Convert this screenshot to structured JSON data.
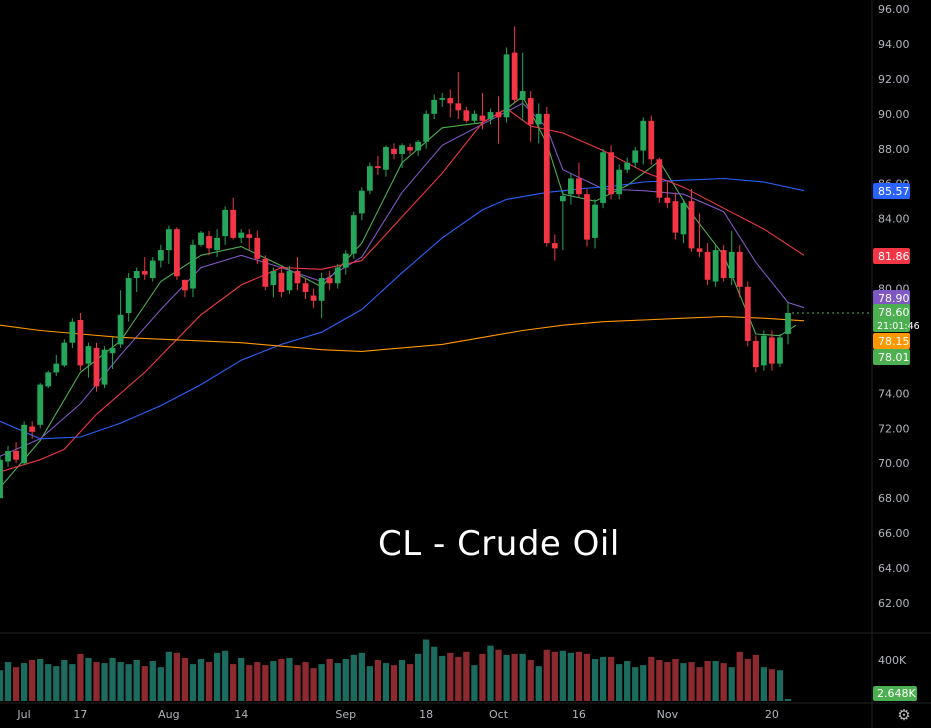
{
  "chart_data": {
    "type": "candlestick",
    "title": "CL - Crude Oil",
    "y_ticks": [
      "96.00",
      "94.00",
      "92.00",
      "90.00",
      "88.00",
      "86.00",
      "84.00",
      "82.00",
      "80.00",
      "78.00",
      "76.00",
      "74.00",
      "72.00",
      "70.00",
      "68.00",
      "66.00",
      "64.00",
      "62.00"
    ],
    "ylim": [
      60.4,
      96.8
    ],
    "x_ticks": [
      {
        "label": "Jul",
        "index": 0
      },
      {
        "label": "17",
        "index": 10
      },
      {
        "label": "Aug",
        "index": 21
      },
      {
        "label": "14",
        "index": 30
      },
      {
        "label": "Sep",
        "index": 43
      },
      {
        "label": "18",
        "index": 53
      },
      {
        "label": "Oct",
        "index": 62
      },
      {
        "label": "16",
        "index": 72
      },
      {
        "label": "Nov",
        "index": 83
      },
      {
        "label": "20",
        "index": 96
      }
    ],
    "volume_axis": {
      "tick_label": "400K",
      "tick_value": 400000,
      "max": 640000
    },
    "price_badges": [
      {
        "label": "85.57",
        "value": 85.57,
        "color": "#2962ff"
      },
      {
        "label": "81.86",
        "value": 81.86,
        "color": "#f23645"
      },
      {
        "label": "78.90",
        "value": 78.9,
        "color": "#7e57c2"
      },
      {
        "label": "78.60",
        "sublabel": "21:01:46",
        "value": 78.6,
        "color": "#4caf50"
      },
      {
        "label": "78.15",
        "value": 78.15,
        "color": "#ff9800"
      },
      {
        "label": "78.01",
        "value": 78.01,
        "color": "#4caf50"
      }
    ],
    "volume_badge": {
      "label": "2.648K",
      "color": "#4caf50"
    },
    "ma_colors": {
      "ma_fast": "#4caf50",
      "ma_20": "#7e57c2",
      "ma_50": "#f23645",
      "ma_100": "#2962ff",
      "ma_200": "#ff9800"
    },
    "candle_colors": {
      "up": "#26a65b",
      "down": "#f23645",
      "vol_up": "#1b6b5f",
      "vol_down": "#8c2a30"
    },
    "candles": [
      [
        68,
        68.5,
        70.4,
        70.2
      ],
      [
        70.1,
        69.8,
        71,
        70.7
      ],
      [
        70.7,
        70,
        71.2,
        70.2
      ],
      [
        70,
        69.9,
        72.4,
        72.2
      ],
      [
        72.1,
        71.4,
        72.4,
        71.8
      ],
      [
        72.2,
        72,
        74.6,
        74.5
      ],
      [
        74.4,
        74.3,
        75.3,
        75.2
      ],
      [
        75.2,
        75,
        76.2,
        75.7
      ],
      [
        75.6,
        75.5,
        77.1,
        76.9
      ],
      [
        76.9,
        76.6,
        78.3,
        78.1
      ],
      [
        78.2,
        75.3,
        78.6,
        75.6
      ],
      [
        75.7,
        74.9,
        76.9,
        76.7
      ],
      [
        76.6,
        74.1,
        76.9,
        74.4
      ],
      [
        74.5,
        74.3,
        76.7,
        76.5
      ],
      [
        76.3,
        75.4,
        77.2,
        76.6
      ],
      [
        76.8,
        76.6,
        79.9,
        78.5
      ],
      [
        78.6,
        78.1,
        80.9,
        80.6
      ],
      [
        80.6,
        79.8,
        81.2,
        81
      ],
      [
        81,
        80.5,
        81.8,
        80.8
      ],
      [
        80.6,
        80.4,
        81.8,
        81.6
      ],
      [
        81.6,
        81.2,
        82.5,
        82.2
      ],
      [
        82.2,
        81.4,
        83.6,
        83.4
      ],
      [
        83.4,
        80.5,
        83.5,
        80.7
      ],
      [
        80.5,
        79.5,
        80.5,
        79.9
      ],
      [
        80,
        79.5,
        82.8,
        82.5
      ],
      [
        82.5,
        82.4,
        83.3,
        83.2
      ],
      [
        83,
        81.9,
        83.3,
        82.3
      ],
      [
        82.2,
        81.8,
        83.4,
        82.9
      ],
      [
        83,
        82.5,
        84.7,
        84.5
      ],
      [
        84.5,
        82.8,
        85.2,
        82.9
      ],
      [
        82.9,
        82.6,
        83.4,
        83.2
      ],
      [
        83.1,
        82.2,
        83.4,
        82.9
      ],
      [
        82.9,
        81.4,
        83.3,
        81.7
      ],
      [
        81.7,
        79.9,
        81.9,
        80.1
      ],
      [
        80.2,
        79.5,
        81.2,
        81
      ],
      [
        80.9,
        79.5,
        81.3,
        79.8
      ],
      [
        79.9,
        79.7,
        81.3,
        81
      ],
      [
        81,
        79.9,
        81.8,
        80.3
      ],
      [
        80.3,
        79.4,
        80.6,
        79.8
      ],
      [
        79.6,
        78.9,
        80,
        79.3
      ],
      [
        79.3,
        78.3,
        80.9,
        80.6
      ],
      [
        80.6,
        79.9,
        81,
        80.3
      ],
      [
        80.3,
        80,
        81.4,
        81.2
      ],
      [
        81.2,
        80.8,
        82.2,
        82
      ],
      [
        82,
        81.7,
        84.4,
        84.2
      ],
      [
        84.3,
        83.9,
        85.8,
        85.6
      ],
      [
        85.6,
        85.4,
        87.2,
        87
      ],
      [
        87,
        86.5,
        87.6,
        86.9
      ],
      [
        86.8,
        86.4,
        88.2,
        88.1
      ],
      [
        88,
        87.4,
        88.3,
        87.7
      ],
      [
        87.7,
        86.9,
        88.3,
        88.2
      ],
      [
        88.1,
        87.7,
        88.3,
        87.9
      ],
      [
        87.9,
        87.6,
        88.5,
        88.4
      ],
      [
        88.4,
        88,
        90.2,
        90
      ],
      [
        90,
        89.7,
        91.1,
        90.8
      ],
      [
        90.8,
        90.4,
        91.2,
        90.9
      ],
      [
        90.9,
        89.8,
        91.4,
        90.6
      ],
      [
        90.6,
        89.7,
        92.4,
        90.2
      ],
      [
        90.2,
        89.5,
        90.4,
        89.6
      ],
      [
        89.6,
        89.4,
        90.2,
        90
      ],
      [
        89.9,
        89.1,
        91.2,
        89.6
      ],
      [
        89.7,
        89.4,
        90.3,
        90.1
      ],
      [
        90.1,
        88.3,
        91,
        89.8
      ],
      [
        89.8,
        89.5,
        93.8,
        93.4
      ],
      [
        93.5,
        90.6,
        95,
        90.8
      ],
      [
        90.8,
        89.6,
        93.5,
        91.3
      ],
      [
        90.9,
        88.4,
        91.3,
        89.4
      ],
      [
        89.4,
        88.3,
        90.6,
        90
      ],
      [
        90,
        82.4,
        90.4,
        82.6
      ],
      [
        82.6,
        81.6,
        83.1,
        82.3
      ],
      [
        85,
        82.2,
        85.6,
        85.3
      ],
      [
        85.4,
        84.8,
        86.6,
        86.3
      ],
      [
        86.3,
        85.2,
        87.2,
        85.4
      ],
      [
        85.4,
        82.4,
        85.7,
        82.8
      ],
      [
        82.9,
        82.3,
        85.1,
        84.8
      ],
      [
        84.9,
        84.6,
        88,
        87.8
      ],
      [
        87.8,
        85.1,
        88.2,
        85.4
      ],
      [
        85.4,
        85.1,
        87.1,
        86.8
      ],
      [
        86.8,
        86.6,
        87.5,
        87.2
      ],
      [
        87.2,
        86.9,
        88.1,
        87.9
      ],
      [
        87.9,
        87.1,
        89.8,
        89.6
      ],
      [
        89.6,
        87.1,
        89.9,
        87.4
      ],
      [
        87.4,
        84.9,
        87.5,
        85.2
      ],
      [
        85.2,
        84.6,
        86.2,
        84.9
      ],
      [
        85,
        82.8,
        85.5,
        83.2
      ],
      [
        83.1,
        82.6,
        85.1,
        84.9
      ],
      [
        85,
        82.1,
        85.7,
        82.3
      ],
      [
        82.3,
        81.8,
        84.3,
        82.1
      ],
      [
        82.1,
        80.2,
        82.6,
        80.5
      ],
      [
        80.4,
        80.1,
        82.5,
        82.2
      ],
      [
        82.2,
        80.4,
        82.5,
        80.6
      ],
      [
        80.6,
        80.2,
        83.3,
        82.1
      ],
      [
        82.1,
        79.5,
        82.5,
        80.1
      ],
      [
        80.1,
        76.7,
        80.4,
        77
      ],
      [
        77,
        75.2,
        77.3,
        75.5
      ],
      [
        75.6,
        75.3,
        77.6,
        77.3
      ],
      [
        77.2,
        75.3,
        77.6,
        75.7
      ],
      [
        75.7,
        75.5,
        77.4,
        77.2
      ],
      [
        77.4,
        76.8,
        79.2,
        78.6
      ]
    ],
    "volume": [
      300000,
      380000,
      330000,
      370000,
      400000,
      410000,
      360000,
      340000,
      400000,
      360000,
      460000,
      420000,
      380000,
      370000,
      420000,
      380000,
      360000,
      400000,
      340000,
      390000,
      330000,
      480000,
      470000,
      420000,
      360000,
      410000,
      380000,
      470000,
      490000,
      360000,
      420000,
      350000,
      380000,
      350000,
      390000,
      410000,
      420000,
      350000,
      380000,
      320000,
      360000,
      410000,
      370000,
      410000,
      450000,
      470000,
      340000,
      400000,
      370000,
      350000,
      400000,
      360000,
      460000,
      600000,
      530000,
      440000,
      470000,
      430000,
      480000,
      350000,
      460000,
      540000,
      500000,
      450000,
      460000,
      460000,
      400000,
      340000,
      500000,
      480000,
      490000,
      470000,
      480000,
      460000,
      410000,
      430000,
      430000,
      360000,
      390000,
      330000,
      350000,
      430000,
      400000,
      380000,
      410000,
      370000,
      380000,
      330000,
      390000,
      390000,
      370000,
      330000,
      480000,
      410000,
      450000,
      330000,
      310000,
      300000,
      20000
    ],
    "ma_lines": {
      "ma_fast": [
        [
          0,
          68.6
        ],
        [
          5,
          71.3
        ],
        [
          10,
          75.2
        ],
        [
          15,
          77
        ],
        [
          20,
          80.4
        ],
        [
          25,
          81.9
        ],
        [
          30,
          82.4
        ],
        [
          35,
          81.3
        ],
        [
          40,
          80.1
        ],
        [
          45,
          82.6
        ],
        [
          50,
          87.2
        ],
        [
          55,
          89.2
        ],
        [
          60,
          89.5
        ],
        [
          63,
          90.3
        ],
        [
          65,
          91
        ],
        [
          68,
          88.3
        ],
        [
          70,
          85.4
        ],
        [
          74,
          85
        ],
        [
          78,
          85.9
        ],
        [
          82,
          87.3
        ],
        [
          86,
          84.3
        ],
        [
          90,
          81.9
        ],
        [
          94,
          77.4
        ],
        [
          97,
          77.3
        ],
        [
          99,
          77.9
        ]
      ],
      "ma_20": [
        [
          0,
          70.4
        ],
        [
          5,
          71.4
        ],
        [
          10,
          73.4
        ],
        [
          15,
          76.2
        ],
        [
          20,
          78.8
        ],
        [
          25,
          81.2
        ],
        [
          30,
          81.9
        ],
        [
          35,
          81.2
        ],
        [
          40,
          80.4
        ],
        [
          45,
          81.8
        ],
        [
          50,
          85.5
        ],
        [
          55,
          88.2
        ],
        [
          60,
          89.4
        ],
        [
          65,
          90.6
        ],
        [
          68,
          89.2
        ],
        [
          70,
          86.8
        ],
        [
          75,
          85.7
        ],
        [
          80,
          85.6
        ],
        [
          85,
          85.4
        ],
        [
          90,
          84.4
        ],
        [
          94,
          81.5
        ],
        [
          98,
          79.2
        ],
        [
          100,
          78.9
        ]
      ],
      "ma_50": [
        [
          0,
          69.5
        ],
        [
          5,
          70.2
        ],
        [
          8,
          70.8
        ],
        [
          12,
          72.8
        ],
        [
          18,
          75.2
        ],
        [
          25,
          78.5
        ],
        [
          30,
          80.2
        ],
        [
          35,
          81.2
        ],
        [
          40,
          81.1
        ],
        [
          45,
          81.6
        ],
        [
          50,
          84.1
        ],
        [
          55,
          86.6
        ],
        [
          60,
          89.5
        ],
        [
          63,
          90.3
        ],
        [
          66,
          89.3
        ],
        [
          70,
          88.9
        ],
        [
          75,
          87.9
        ],
        [
          80,
          86.7
        ],
        [
          85,
          85.8
        ],
        [
          90,
          84.6
        ],
        [
          95,
          83.4
        ],
        [
          100,
          81.9
        ]
      ],
      "ma_100": [
        [
          0,
          72.4
        ],
        [
          5,
          71.4
        ],
        [
          10,
          71.5
        ],
        [
          15,
          72.3
        ],
        [
          20,
          73.3
        ],
        [
          25,
          74.5
        ],
        [
          30,
          75.9
        ],
        [
          35,
          76.8
        ],
        [
          40,
          77.5
        ],
        [
          45,
          78.8
        ],
        [
          50,
          80.9
        ],
        [
          55,
          82.9
        ],
        [
          60,
          84.5
        ],
        [
          63,
          85.1
        ],
        [
          68,
          85.5
        ],
        [
          72,
          85.7
        ],
        [
          77,
          85.9
        ],
        [
          80,
          86.1
        ],
        [
          85,
          86.2
        ],
        [
          90,
          86.3
        ],
        [
          95,
          86.1
        ],
        [
          100,
          85.6
        ]
      ],
      "ma_200": [
        [
          0,
          77.9
        ],
        [
          5,
          77.6
        ],
        [
          10,
          77.4
        ],
        [
          15,
          77.2
        ],
        [
          20,
          77.1
        ],
        [
          25,
          77
        ],
        [
          30,
          76.9
        ],
        [
          35,
          76.7
        ],
        [
          40,
          76.5
        ],
        [
          45,
          76.4
        ],
        [
          50,
          76.6
        ],
        [
          55,
          76.8
        ],
        [
          60,
          77.2
        ],
        [
          65,
          77.6
        ],
        [
          70,
          77.9
        ],
        [
          75,
          78.1
        ],
        [
          80,
          78.2
        ],
        [
          85,
          78.3
        ],
        [
          90,
          78.4
        ],
        [
          95,
          78.3
        ],
        [
          100,
          78.15
        ]
      ]
    }
  }
}
